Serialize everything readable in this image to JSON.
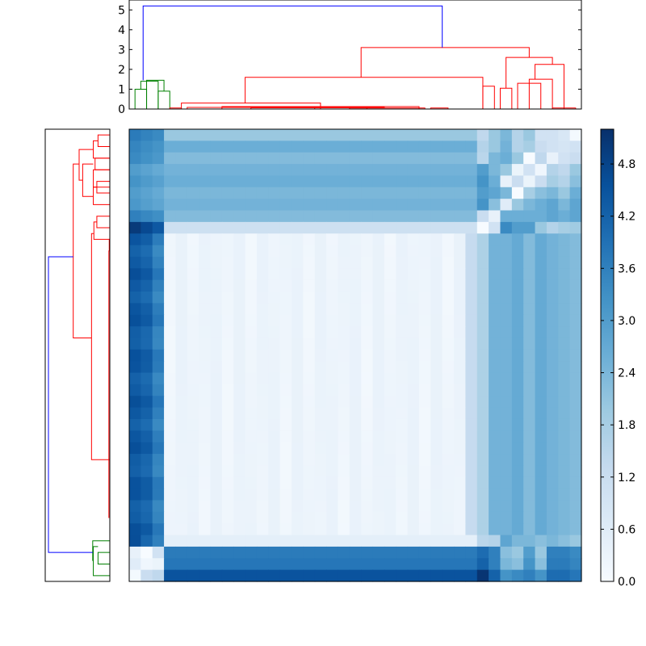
{
  "chart_data": [
    {
      "type": "dendrogram",
      "orientation": "top",
      "ylim": [
        0,
        5.5
      ],
      "yticks": [
        0,
        1,
        2,
        3,
        4,
        5
      ],
      "grid": false,
      "link_colors": {
        "root": "#0000ff",
        "small_cluster": "#008000",
        "main_cluster": "#ff0000"
      },
      "top_merge_height": 5.2,
      "main_cluster_merge_height": 3.1,
      "small_cluster_merge_height": 1.4
    },
    {
      "type": "dendrogram",
      "orientation": "left",
      "axis_visible": false,
      "link_colors": {
        "root": "#0000ff",
        "small_cluster": "#008000",
        "main_cluster": "#ff0000"
      }
    },
    {
      "type": "heatmap",
      "rows": 39,
      "cols": 39,
      "colormap": "Blues",
      "vmin": 0.0,
      "vmax": 5.2,
      "axis_ticks_visible": false,
      "description_blocks": [
        {
          "rows": [
            0,
            7
          ],
          "cols": [
            3,
            30
          ],
          "value": 2.3
        },
        {
          "rows": [
            8,
            8
          ],
          "cols": [
            3,
            30
          ],
          "value": 1.0
        },
        {
          "rows": [
            9,
            34
          ],
          "cols": [
            3,
            29
          ],
          "value": 0.15
        },
        {
          "rows": [
            36,
            38
          ],
          "cols": [
            3,
            30
          ],
          "value": 4.2
        }
      ]
    },
    {
      "type": "colorbar",
      "range": [
        0.0,
        5.2
      ],
      "tick_values": [
        0.0,
        0.6,
        1.2,
        1.8,
        2.4,
        3.0,
        3.6,
        4.2,
        4.8
      ],
      "tick_labels": [
        "0.0",
        "0.6",
        "1.2",
        "1.8",
        "2.4",
        "3.0",
        "3.6",
        "4.2",
        "4.8"
      ],
      "colormap": "Blues"
    }
  ],
  "colors": {
    "frame": "#000000",
    "background": "#ffffff"
  }
}
